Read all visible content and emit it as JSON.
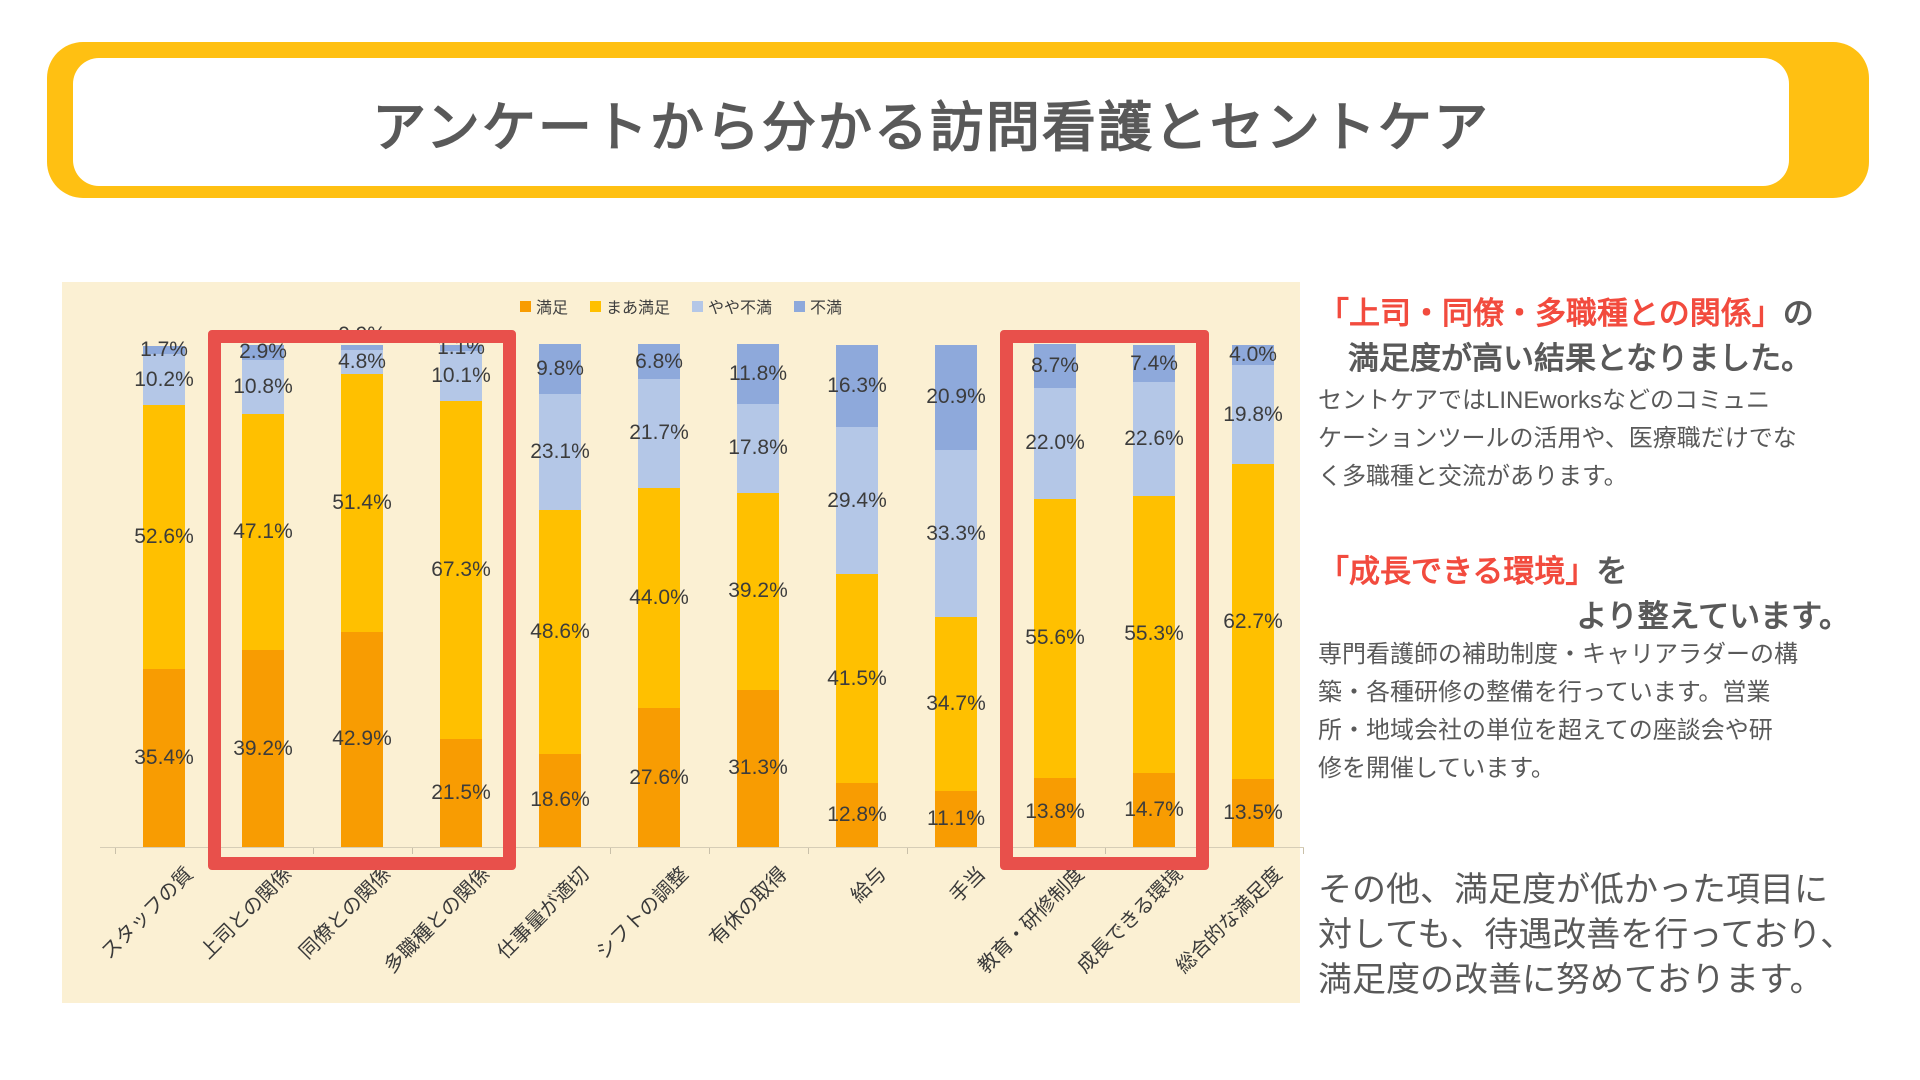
{
  "banner": {
    "title": "アンケートから分かる訪問看護とセントケア"
  },
  "chart_data": {
    "type": "bar",
    "subtype": "stacked-100-percent",
    "title": "",
    "xlabel": "",
    "ylabel": "",
    "ylim": [
      0,
      100
    ],
    "grid": false,
    "legend_position": "top-center",
    "background_color": "#FBF0D3",
    "value_label_format": "0.0%",
    "categories": [
      "スタッフの質",
      "上司との関係",
      "同僚との関係",
      "多職種との関係",
      "仕事量が適切",
      "シフトの調整",
      "有休の取得",
      "給与",
      "手当",
      "教育・研修制度",
      "成長できる環境",
      "総合的な満足度"
    ],
    "series": [
      {
        "name": "満足",
        "color": "#F89C02",
        "values": [
          35.4,
          39.2,
          42.9,
          21.5,
          18.6,
          27.6,
          31.3,
          12.8,
          11.1,
          13.8,
          14.7,
          13.5
        ]
      },
      {
        "name": "まあ満足",
        "color": "#FFC000",
        "values": [
          52.6,
          47.1,
          51.4,
          67.3,
          48.6,
          44.0,
          39.2,
          41.5,
          34.7,
          55.6,
          55.3,
          62.7
        ]
      },
      {
        "name": "やや不満",
        "color": "#B4C7E7",
        "values": [
          10.2,
          10.8,
          4.8,
          10.1,
          23.1,
          21.7,
          17.8,
          29.4,
          33.3,
          22.0,
          22.6,
          19.8
        ]
      },
      {
        "name": "不満",
        "color": "#8EA9DB",
        "values": [
          1.7,
          2.9,
          0.9,
          1.1,
          9.8,
          6.8,
          11.8,
          16.3,
          20.9,
          8.7,
          7.4,
          4.0
        ]
      }
    ],
    "highlight_boxes": [
      {
        "start_index": 1,
        "end_index": 3
      },
      {
        "start_index": 9,
        "end_index": 10
      }
    ],
    "highlight_color": "#E8504B"
  },
  "right_panel": {
    "section1": {
      "heading_red": "「上司・同僚・多職種との関係」",
      "heading_tail": "の",
      "heading_line2": "満足度が高い結果となりました。",
      "body_lines": [
        "セントケアではLINEworksなどのコミュニ",
        "ケーションツールの活用や、医療職だけでな",
        "く多職種と交流があります。"
      ]
    },
    "section2": {
      "heading_red": "「成長できる環境」",
      "heading_tail": "を",
      "heading_line2": "より整えています。",
      "body_lines": [
        "専門看護師の補助制度・キャリアラダーの構",
        "築・各種研修の整備を行っています。営業",
        "所・地域会社の単位を超えての座談会や研",
        "修を開催しています。"
      ]
    },
    "closing_lines": [
      "その他、満足度が低かった項目に",
      "対しても、待遇改善を行っており、",
      "満足度の改善に努めております。"
    ]
  }
}
